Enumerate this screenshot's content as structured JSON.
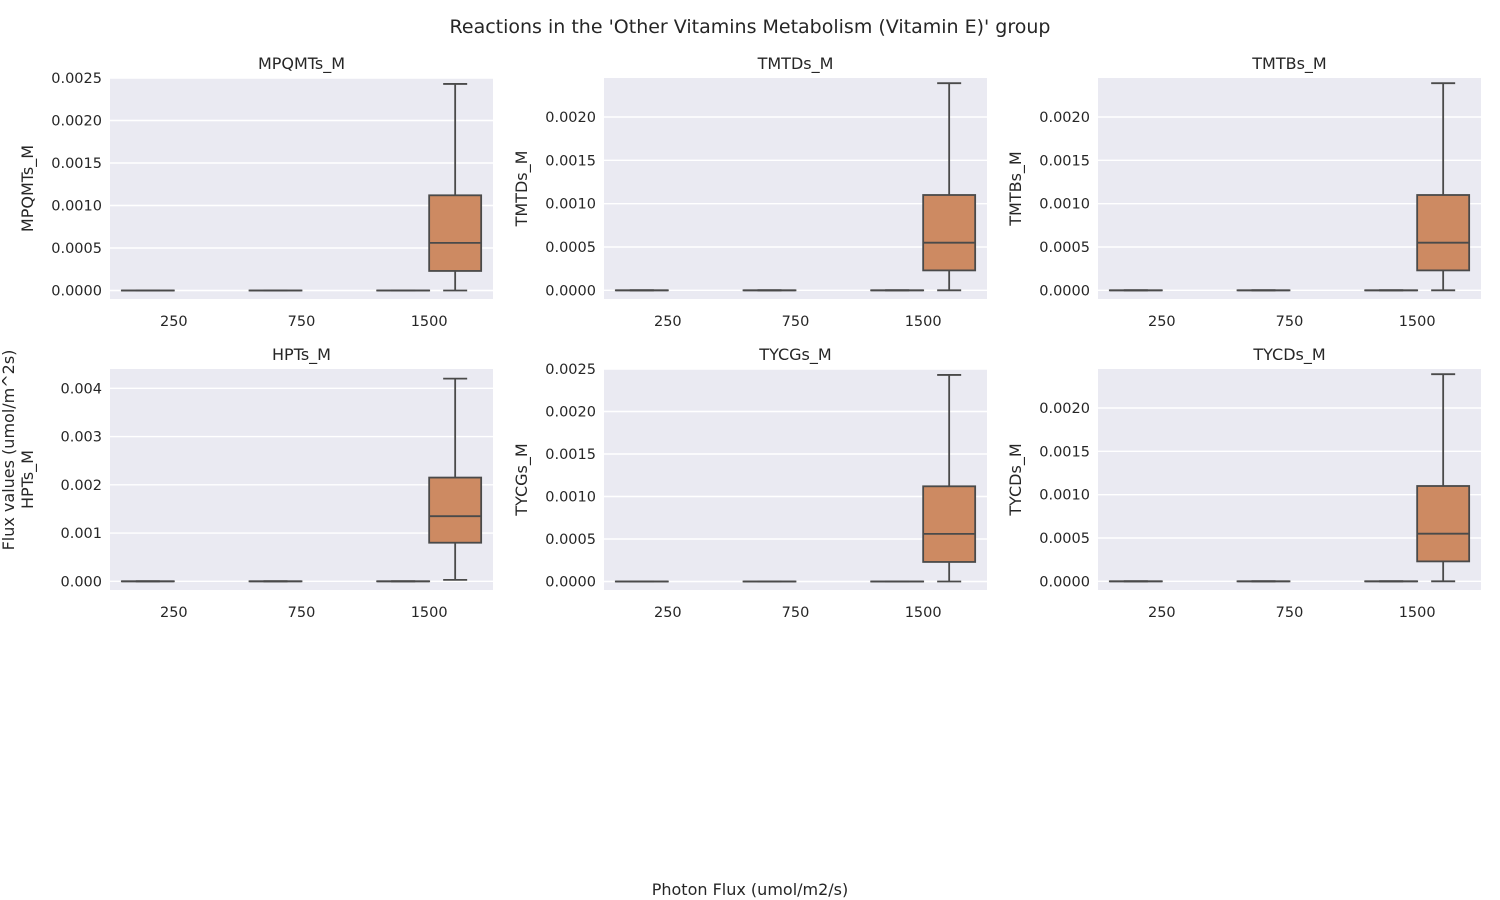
{
  "figure": {
    "title": "Reactions in the 'Other Vitamins Metabolism (Vitamin E)' group",
    "supxlabel": "Photon Flux (umol/m2/s)",
    "supylabel": "Flux values (umol/m^2s)",
    "background": "#ffffff",
    "panel_background": "#eaeaf2",
    "grid_color": "#ffffff",
    "line_color": "#4a4a4a"
  },
  "chart_data": [
    {
      "type": "box",
      "title": "MPQMTs_M",
      "ylabel": "MPQMTs_M",
      "categories": [
        "250",
        "750",
        "1500"
      ],
      "ylim": [
        -0.0001,
        0.0025
      ],
      "yticks": [
        0.0,
        0.0005,
        0.001,
        0.0015,
        0.002,
        0.0025
      ],
      "ytick_labels": [
        "0.0000",
        "0.0005",
        "0.0010",
        "0.0015",
        "0.0020",
        "0.0025"
      ],
      "grid": true,
      "series": [
        {
          "name": "",
          "color": "#c8c8c8",
          "boxes": [
            {
              "min": 0,
              "q1": 0,
              "median": 0,
              "q3": 0,
              "max": 0
            },
            {
              "min": 0,
              "q1": 0,
              "median": 0,
              "q3": 0,
              "max": 0
            },
            {
              "min": 0,
              "q1": 0,
              "median": 0,
              "q3": 0,
              "max": 0
            }
          ]
        },
        {
          "name": "",
          "color": "#cd8a62",
          "boxes": [
            null,
            null,
            {
              "min": 0.0,
              "q1": 0.00023,
              "median": 0.00056,
              "q3": 0.00112,
              "max": 0.00243
            }
          ]
        }
      ]
    },
    {
      "type": "box",
      "title": "TMTDs_M",
      "ylabel": "TMTDs_M",
      "categories": [
        "250",
        "750",
        "1500"
      ],
      "ylim": [
        -0.0001,
        0.00245
      ],
      "yticks": [
        0.0,
        0.0005,
        0.001,
        0.0015,
        0.002
      ],
      "ytick_labels": [
        "0.0000",
        "0.0005",
        "0.0010",
        "0.0015",
        "0.0020"
      ],
      "grid": true,
      "series": [
        {
          "name": "",
          "color": "#c8c8c8",
          "boxes": [
            {
              "min": 0,
              "q1": 0,
              "median": 0,
              "q3": 0,
              "max": 0
            },
            {
              "min": 0,
              "q1": 0,
              "median": 0,
              "q3": 0,
              "max": 0
            },
            {
              "min": 0,
              "q1": 0,
              "median": 0,
              "q3": 0,
              "max": 0
            }
          ]
        },
        {
          "name": "",
          "color": "#cd8a62",
          "boxes": [
            null,
            null,
            {
              "min": 0.0,
              "q1": 0.00023,
              "median": 0.00055,
              "q3": 0.0011,
              "max": 0.00239
            }
          ]
        }
      ]
    },
    {
      "type": "box",
      "title": "TMTBs_M",
      "ylabel": "TMTBs_M",
      "categories": [
        "250",
        "750",
        "1500"
      ],
      "ylim": [
        -0.0001,
        0.00245
      ],
      "yticks": [
        0.0,
        0.0005,
        0.001,
        0.0015,
        0.002
      ],
      "ytick_labels": [
        "0.0000",
        "0.0005",
        "0.0010",
        "0.0015",
        "0.0020"
      ],
      "grid": true,
      "series": [
        {
          "name": "",
          "color": "#c8c8c8",
          "boxes": [
            {
              "min": 0,
              "q1": 0,
              "median": 0,
              "q3": 0,
              "max": 0
            },
            {
              "min": 0,
              "q1": 0,
              "median": 0,
              "q3": 0,
              "max": 0
            },
            {
              "min": 0,
              "q1": 0,
              "median": 0,
              "q3": 0,
              "max": 0
            }
          ]
        },
        {
          "name": "",
          "color": "#cd8a62",
          "boxes": [
            null,
            null,
            {
              "min": 0.0,
              "q1": 0.00023,
              "median": 0.00055,
              "q3": 0.0011,
              "max": 0.00239
            }
          ]
        }
      ]
    },
    {
      "type": "box",
      "title": "HPTs_M",
      "ylabel": "HPTs_M",
      "categories": [
        "250",
        "750",
        "1500"
      ],
      "ylim": [
        -0.00018,
        0.0044
      ],
      "yticks": [
        0.0,
        0.001,
        0.002,
        0.003,
        0.004
      ],
      "ytick_labels": [
        "0.000",
        "0.001",
        "0.002",
        "0.003",
        "0.004"
      ],
      "grid": true,
      "series": [
        {
          "name": "",
          "color": "#c8c8c8",
          "boxes": [
            {
              "min": 0,
              "q1": 0,
              "median": 0,
              "q3": 0,
              "max": 0
            },
            {
              "min": 0,
              "q1": 0,
              "median": 0,
              "q3": 0,
              "max": 0
            },
            {
              "min": 0,
              "q1": 0,
              "median": 0,
              "q3": 0,
              "max": 0
            }
          ]
        },
        {
          "name": "",
          "color": "#cd8a62",
          "boxes": [
            null,
            null,
            {
              "min": 3e-05,
              "q1": 0.0008,
              "median": 0.00135,
              "q3": 0.00215,
              "max": 0.0042
            }
          ]
        }
      ]
    },
    {
      "type": "box",
      "title": "TYCGs_M",
      "ylabel": "TYCGs_M",
      "categories": [
        "250",
        "750",
        "1500"
      ],
      "ylim": [
        -0.0001,
        0.0025
      ],
      "yticks": [
        0.0,
        0.0005,
        0.001,
        0.0015,
        0.002,
        0.0025
      ],
      "ytick_labels": [
        "0.0000",
        "0.0005",
        "0.0010",
        "0.0015",
        "0.0020",
        "0.0025"
      ],
      "grid": true,
      "series": [
        {
          "name": "",
          "color": "#c8c8c8",
          "boxes": [
            {
              "min": 0,
              "q1": 0,
              "median": 0,
              "q3": 0,
              "max": 0
            },
            {
              "min": 0,
              "q1": 0,
              "median": 0,
              "q3": 0,
              "max": 0
            },
            {
              "min": 0,
              "q1": 0,
              "median": 0,
              "q3": 0,
              "max": 0
            }
          ]
        },
        {
          "name": "",
          "color": "#cd8a62",
          "boxes": [
            null,
            null,
            {
              "min": 0.0,
              "q1": 0.00023,
              "median": 0.00056,
              "q3": 0.00112,
              "max": 0.00243
            }
          ]
        }
      ]
    },
    {
      "type": "box",
      "title": "TYCDs_M",
      "ylabel": "TYCDs_M",
      "categories": [
        "250",
        "750",
        "1500"
      ],
      "ylim": [
        -0.0001,
        0.00245
      ],
      "yticks": [
        0.0,
        0.0005,
        0.001,
        0.0015,
        0.002
      ],
      "ytick_labels": [
        "0.0000",
        "0.0005",
        "0.0010",
        "0.0015",
        "0.0020"
      ],
      "grid": true,
      "series": [
        {
          "name": "",
          "color": "#c8c8c8",
          "boxes": [
            {
              "min": 0,
              "q1": 0,
              "median": 0,
              "q3": 0,
              "max": 0
            },
            {
              "min": 0,
              "q1": 0,
              "median": 0,
              "q3": 0,
              "max": 0
            },
            {
              "min": 0,
              "q1": 0,
              "median": 0,
              "q3": 0,
              "max": 0
            }
          ]
        },
        {
          "name": "",
          "color": "#cd8a62",
          "boxes": [
            null,
            null,
            {
              "min": 0.0,
              "q1": 0.00023,
              "median": 0.00055,
              "q3": 0.0011,
              "max": 0.00239
            }
          ]
        }
      ]
    }
  ]
}
